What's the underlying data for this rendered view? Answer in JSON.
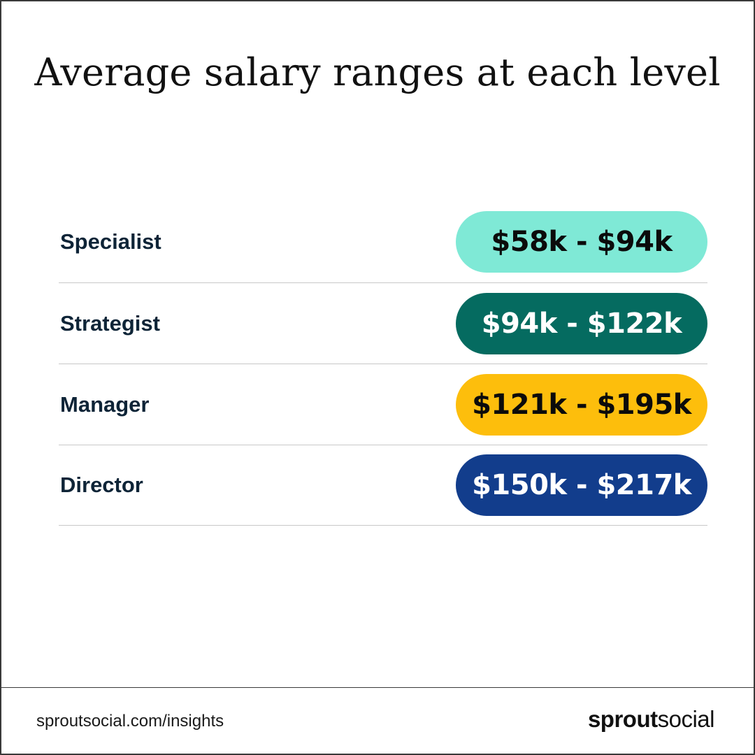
{
  "title": "Average salary ranges at each level",
  "levels": [
    {
      "label": "Specialist",
      "range": "$58k - $94k",
      "color": "#7fe9d6",
      "text_color": "#0b0b0b"
    },
    {
      "label": "Strategist",
      "range": "$94k - $122k",
      "color": "#056b60",
      "text_color": "#ffffff"
    },
    {
      "label": "Manager",
      "range": "$121k - $195k",
      "color": "#fdbe0c",
      "text_color": "#0b0b0b"
    },
    {
      "label": "Director",
      "range": "$150k - $217k",
      "color": "#123d8c",
      "text_color": "#ffffff"
    }
  ],
  "footer": {
    "url": "sproutsocial.com/insights",
    "logo_bold": "sprout",
    "logo_light": "social"
  }
}
